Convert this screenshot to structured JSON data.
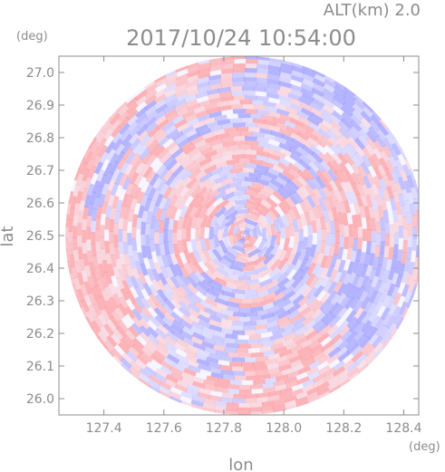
{
  "chart_data": {
    "type": "heatmap",
    "title": "2017/10/24 10:54:00",
    "subtitle": "ALT(km) 2.0",
    "xlabel": "lon",
    "ylabel": "lat",
    "x_unit": "(deg)",
    "y_unit": "(deg)",
    "xlim": [
      127.25,
      128.45
    ],
    "ylim": [
      25.95,
      27.05
    ],
    "x_ticks": [
      127.4,
      127.6,
      127.8,
      128.0,
      128.2,
      128.4
    ],
    "y_ticks": [
      26.0,
      26.1,
      26.2,
      26.3,
      26.4,
      26.5,
      26.6,
      26.7,
      26.8,
      26.9,
      27.0
    ],
    "x_tick_labels": [
      "127.4",
      "127.6",
      "127.8",
      "128.0",
      "128.2",
      "128.4"
    ],
    "y_tick_labels": [
      "26.0",
      "26.1",
      "26.2",
      "26.3",
      "26.4",
      "26.5",
      "26.6",
      "26.7",
      "26.8",
      "26.9",
      "27.0"
    ],
    "radar_center": {
      "lon": 127.87,
      "lat": 26.5
    },
    "radar_radius_deg_lat": 0.55,
    "colors": {
      "positive": "#ff8080",
      "negative": "#8080ff",
      "axis": "#8c8c8c",
      "background": "#ffffff"
    }
  }
}
